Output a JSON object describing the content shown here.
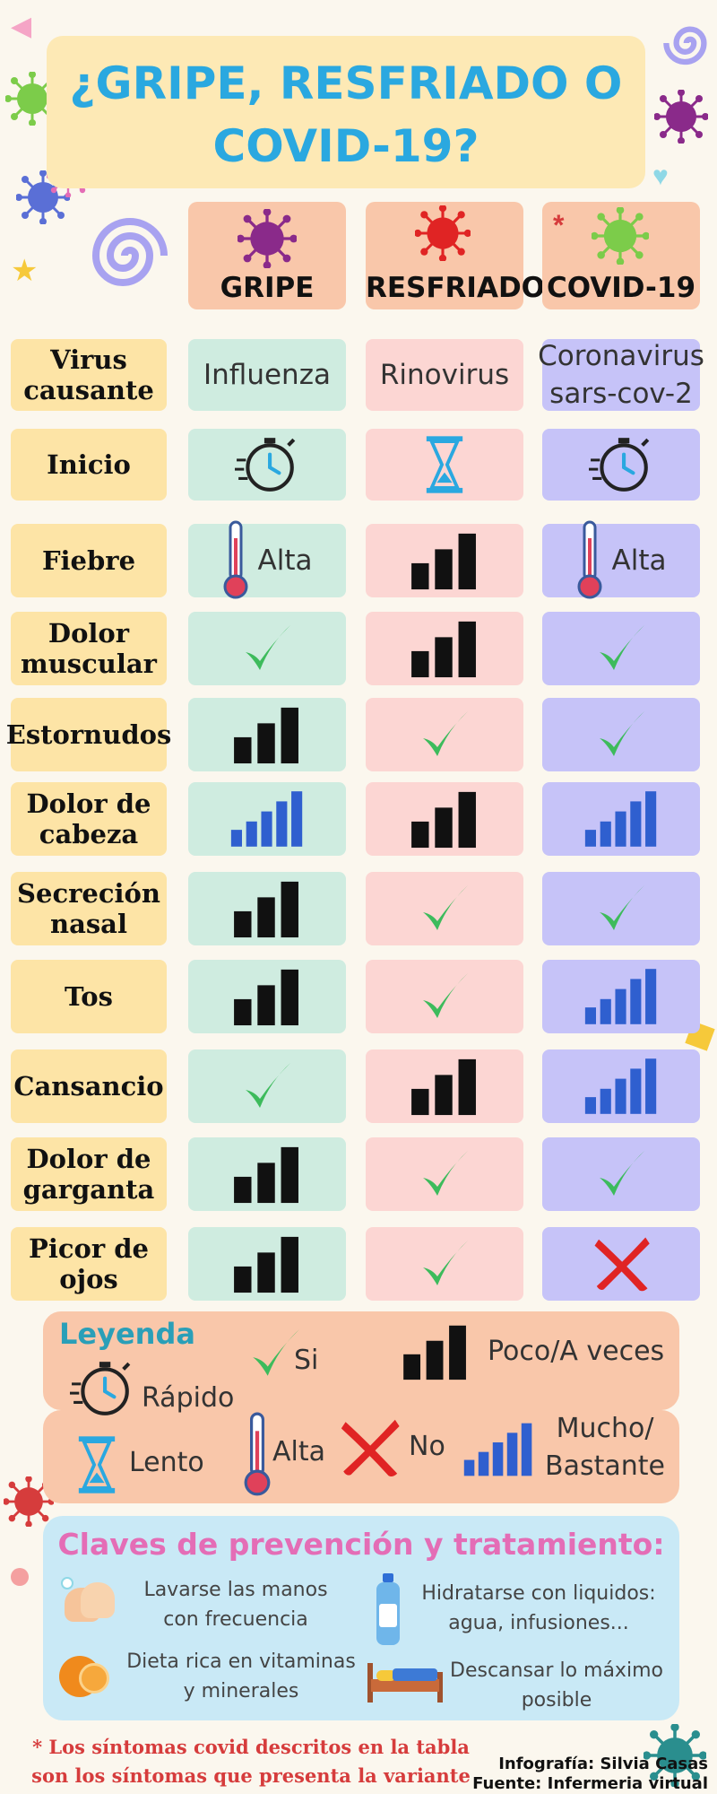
{
  "title": "¿GRIPE, RESFRIADO O COVID-19?",
  "columns": [
    {
      "label": "GRIPE",
      "icon": "virus-purple-icon"
    },
    {
      "label": "RESFRIADO",
      "icon": "virus-red-icon"
    },
    {
      "label": "COVID-19",
      "icon": "virus-green-mask-icon",
      "asterisk": "*"
    }
  ],
  "rows": [
    {
      "label": "Virus causante",
      "cells": [
        {
          "type": "text",
          "text": "Influenza"
        },
        {
          "type": "text",
          "text": "Rinovirus"
        },
        {
          "type": "text",
          "text": "Coronavirus sars-cov-2"
        }
      ]
    },
    {
      "label": "Inicio",
      "cells": [
        {
          "type": "stopwatch"
        },
        {
          "type": "hourglass"
        },
        {
          "type": "stopwatch"
        }
      ]
    },
    {
      "label": "Fiebre",
      "cells": [
        {
          "type": "thermo",
          "text": "Alta"
        },
        {
          "type": "poco"
        },
        {
          "type": "thermo",
          "text": "Alta"
        }
      ]
    },
    {
      "label": "Dolor muscular",
      "cells": [
        {
          "type": "check"
        },
        {
          "type": "poco"
        },
        {
          "type": "check"
        }
      ]
    },
    {
      "label": "Estornudos",
      "cells": [
        {
          "type": "poco"
        },
        {
          "type": "check"
        },
        {
          "type": "check"
        }
      ]
    },
    {
      "label": "Dolor de cabeza",
      "cells": [
        {
          "type": "mucho"
        },
        {
          "type": "poco"
        },
        {
          "type": "mucho"
        }
      ]
    },
    {
      "label": "Secreción nasal",
      "cells": [
        {
          "type": "poco"
        },
        {
          "type": "check"
        },
        {
          "type": "check"
        }
      ]
    },
    {
      "label": "Tos",
      "cells": [
        {
          "type": "poco"
        },
        {
          "type": "check"
        },
        {
          "type": "mucho"
        }
      ]
    },
    {
      "label": "Cansancio",
      "cells": [
        {
          "type": "check"
        },
        {
          "type": "poco"
        },
        {
          "type": "mucho"
        }
      ]
    },
    {
      "label": "Dolor de garganta",
      "cells": [
        {
          "type": "poco"
        },
        {
          "type": "check"
        },
        {
          "type": "check"
        }
      ]
    },
    {
      "label": "Picor de ojos",
      "cells": [
        {
          "type": "poco"
        },
        {
          "type": "check"
        },
        {
          "type": "cross"
        }
      ]
    }
  ],
  "legend": {
    "title": "Leyenda",
    "rapido": "Rápido",
    "lento": "Lento",
    "si": "Si",
    "alta": "Alta",
    "no": "No",
    "poco": "Poco/A veces",
    "mucho_1": "Mucho/",
    "mucho_2": "Bastante"
  },
  "prevention": {
    "title": "Claves de prevención y tratamiento:",
    "items": [
      {
        "line1": "Lavarse las manos",
        "line2": "con frecuencia",
        "icon": "hands-washing-icon"
      },
      {
        "line1": "Hidratarse con liquidos:",
        "line2": "agua, infusiones...",
        "icon": "water-bottle-icon"
      },
      {
        "line1": "Dieta rica en vitaminas",
        "line2": "y minerales",
        "icon": "orange-fruit-icon"
      },
      {
        "line1": "Descansar lo máximo",
        "line2": "posible",
        "icon": "bed-icon"
      }
    ]
  },
  "footnote": {
    "line1": "* Los síntomas covid descritos en la tabla",
    "line2": "son los síntomas que presenta la variante delta."
  },
  "credits": {
    "line1": "Infografía: Silvia Casas",
    "line2": "Fuente: Infermeria virtual"
  },
  "colors": {
    "title": "#2aa8e0",
    "gripe_bg": "#cfece0",
    "resfriado_bg": "#fcd6d3",
    "covid_bg": "#c6c3f8",
    "label_bg": "#fde4a6",
    "check": "#3dbb5c",
    "cross": "#e02424",
    "mucho_bars": "#2f5fcf",
    "poco_bars": "#111111"
  }
}
